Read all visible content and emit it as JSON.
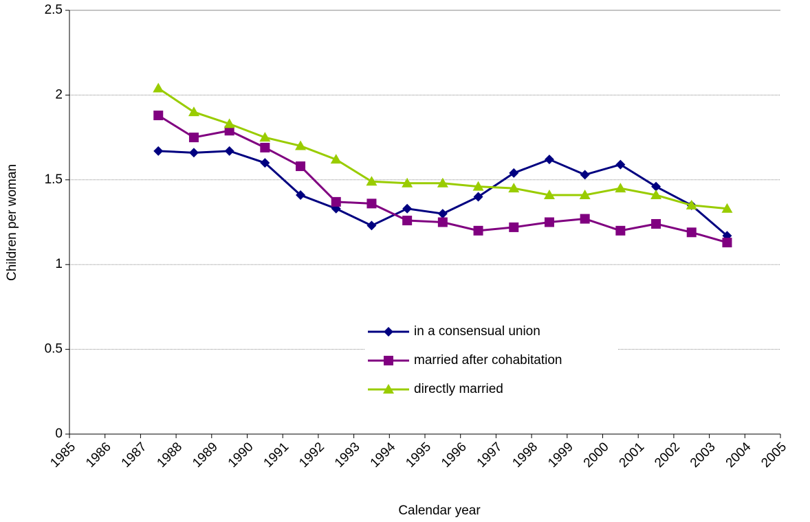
{
  "chart_data": {
    "type": "line",
    "x_label": "Calendar year",
    "y_label": "Children per woman",
    "x": [
      1987.5,
      1988.5,
      1989.5,
      1990.5,
      1991.5,
      1992.5,
      1993.5,
      1994.5,
      1995.5,
      1996.5,
      1997.5,
      1998.5,
      1999.5,
      2000.5,
      2001.5,
      2002.5,
      2003.5
    ],
    "series": [
      {
        "name": "in a consensual union",
        "color": "#000080",
        "marker": "diamond",
        "values": [
          1.67,
          1.66,
          1.67,
          1.6,
          1.41,
          1.33,
          1.23,
          1.33,
          1.3,
          1.4,
          1.54,
          1.62,
          1.53,
          1.59,
          1.46,
          1.35,
          1.17
        ]
      },
      {
        "name": "married after cohabitation",
        "color": "#800080",
        "marker": "square",
        "values": [
          1.88,
          1.75,
          1.79,
          1.69,
          1.58,
          1.37,
          1.36,
          1.26,
          1.25,
          1.2,
          1.22,
          1.25,
          1.27,
          1.2,
          1.24,
          1.19,
          1.13
        ]
      },
      {
        "name": "directly married",
        "color": "#99cc00",
        "marker": "triangle",
        "values": [
          2.04,
          1.9,
          1.83,
          1.75,
          1.7,
          1.62,
          1.49,
          1.48,
          1.48,
          1.46,
          1.45,
          1.41,
          1.41,
          1.45,
          1.41,
          1.35,
          1.33
        ]
      }
    ],
    "xlim": [
      1985,
      2005
    ],
    "xticks": [
      1985,
      1986,
      1987,
      1988,
      1989,
      1990,
      1991,
      1992,
      1993,
      1994,
      1995,
      1996,
      1997,
      1998,
      1999,
      2000,
      2001,
      2002,
      2003,
      2004,
      2005
    ],
    "ylim": [
      0,
      2.5
    ],
    "yticks": [
      0,
      0.5,
      1,
      1.5,
      2,
      2.5
    ],
    "grid": true
  }
}
